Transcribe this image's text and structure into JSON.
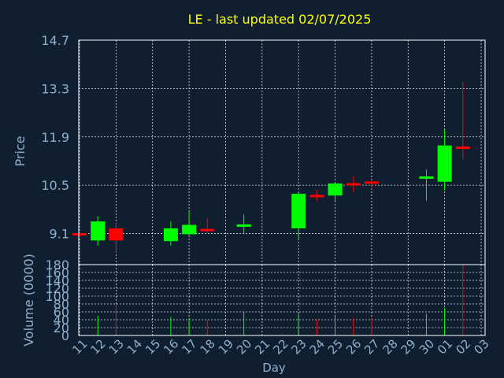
{
  "chart_data": {
    "type": "candlestick",
    "title": "LE - last updated 02/07/2025",
    "xlabel": "Day",
    "price_panel": {
      "ylabel": "Price",
      "ylim": [
        8.2,
        14.7
      ],
      "yticks": [
        9.1,
        10.5,
        11.9,
        13.3,
        14.7
      ],
      "grid": true
    },
    "volume_panel": {
      "ylabel": "Volume (0000)",
      "ylim": [
        0,
        180
      ],
      "yticks": [
        0,
        20,
        40,
        60,
        80,
        100,
        120,
        140,
        160,
        180
      ],
      "grid": true
    },
    "x_ticks": [
      "11",
      "12",
      "13",
      "14",
      "15",
      "16",
      "17",
      "18",
      "19",
      "20",
      "21",
      "22",
      "23",
      "24",
      "25",
      "26",
      "27",
      "28",
      "29",
      "30",
      "01",
      "02",
      "03"
    ],
    "candles": [
      {
        "x": 0,
        "open": 9.1,
        "high": 9.12,
        "low": 9.0,
        "close": 9.05,
        "volume": 0
      },
      {
        "x": 1,
        "open": 8.9,
        "high": 9.6,
        "low": 8.75,
        "close": 9.45,
        "volume": 50
      },
      {
        "x": 2,
        "open": 9.25,
        "high": 9.4,
        "low": 8.55,
        "close": 8.9,
        "volume": 80
      },
      {
        "x": 5,
        "open": 8.88,
        "high": 9.45,
        "low": 8.75,
        "close": 9.25,
        "volume": 47
      },
      {
        "x": 6,
        "open": 9.08,
        "high": 9.75,
        "low": 9.05,
        "close": 9.35,
        "volume": 42
      },
      {
        "x": 7,
        "open": 9.22,
        "high": 9.55,
        "low": 9.12,
        "close": 9.18,
        "volume": 40
      },
      {
        "x": 9,
        "open": 9.32,
        "high": 9.65,
        "low": 9.08,
        "close": 9.34,
        "volume": 60
      },
      {
        "x": 12,
        "open": 9.25,
        "high": 10.3,
        "low": 8.95,
        "close": 10.25,
        "volume": 55
      },
      {
        "x": 13,
        "open": 10.22,
        "high": 10.35,
        "low": 10.05,
        "close": 10.15,
        "volume": 40
      },
      {
        "x": 14,
        "open": 10.2,
        "high": 10.55,
        "low": 10.05,
        "close": 10.55,
        "volume": 48
      },
      {
        "x": 15,
        "open": 10.55,
        "high": 10.75,
        "low": 10.3,
        "close": 10.5,
        "volume": 45
      },
      {
        "x": 16,
        "open": 10.6,
        "high": 10.65,
        "low": 10.4,
        "close": 10.55,
        "volume": 45
      },
      {
        "x": 19,
        "open": 10.7,
        "high": 10.95,
        "low": 10.05,
        "close": 10.74,
        "volume": 55
      },
      {
        "x": 20,
        "open": 10.6,
        "high": 12.1,
        "low": 10.35,
        "close": 11.65,
        "volume": 70
      },
      {
        "x": 21,
        "open": 11.62,
        "high": 13.5,
        "low": 11.25,
        "close": 11.55,
        "volume": 180
      }
    ],
    "colors": {
      "background": "#0f1f30",
      "up": "#00ff00",
      "down": "#ff0000",
      "title": "#ffff00",
      "axis_text": "#8fb0cc",
      "frame": "#ffffff"
    }
  }
}
